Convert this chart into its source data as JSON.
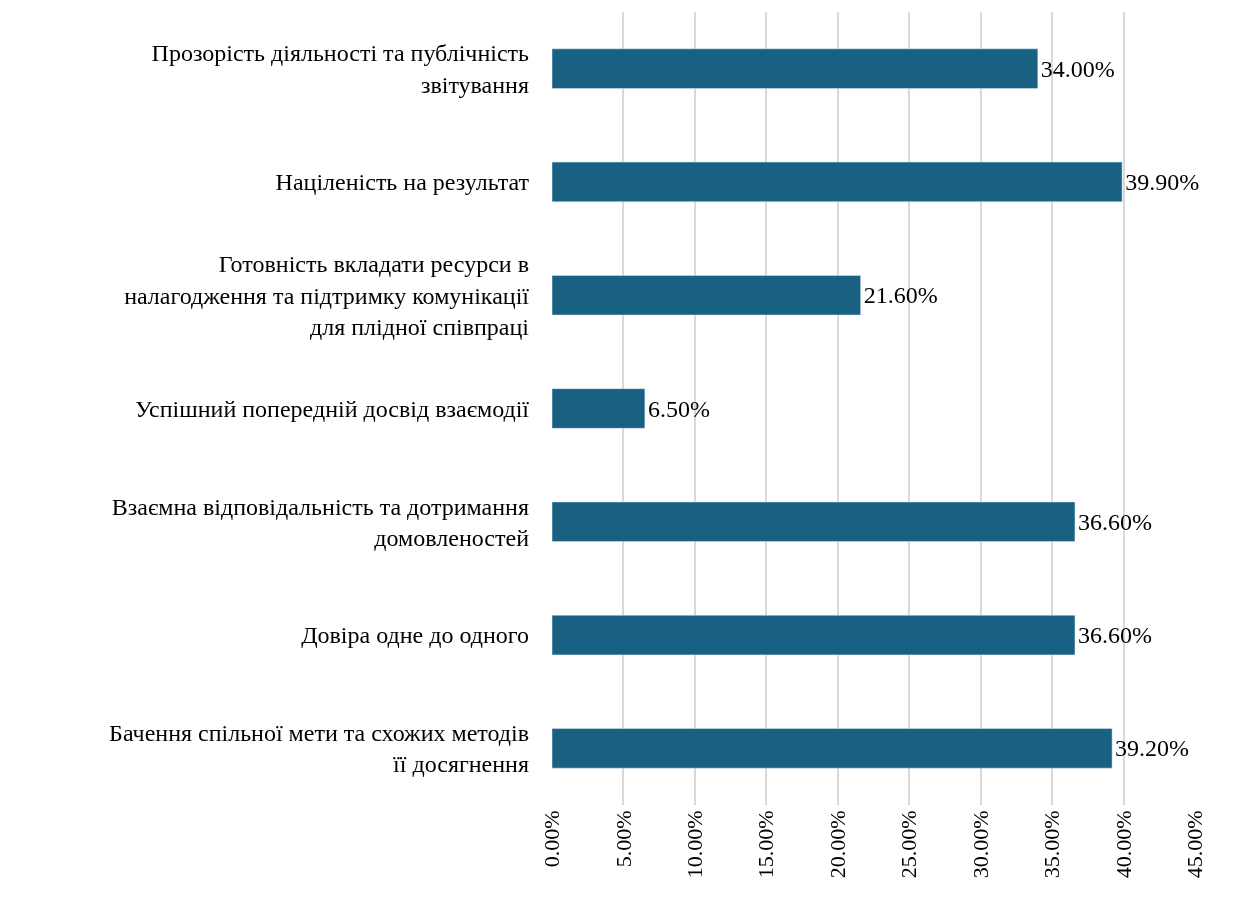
{
  "chart_data": {
    "type": "bar",
    "orientation": "horizontal",
    "categories": [
      "Прозорість діяльності та публічність звітування",
      "Націленість на результат",
      "Готовність вкладати ресурси в налагодження та підтримку комунікації для плідної співпраці",
      "Успішний попередній досвід взаємодії",
      "Взаємна відповідальність та дотримання домовленостей",
      "Довіра одне до одного",
      "Бачення спільної мети та схожих методів її досягнення"
    ],
    "values": [
      34.0,
      39.9,
      21.6,
      6.5,
      36.6,
      36.6,
      39.2
    ],
    "value_labels": [
      "34.00%",
      "39.90%",
      "21.60%",
      "6.50%",
      "36.60%",
      "36.60%",
      "39.20%"
    ],
    "color": "#196183",
    "xlim": [
      0,
      45
    ],
    "xticks": [
      {
        "value": 0,
        "label": "0.00%"
      },
      {
        "value": 5,
        "label": "5.00%"
      },
      {
        "value": 10,
        "label": "10.00%"
      },
      {
        "value": 15,
        "label": "15.00%"
      },
      {
        "value": 20,
        "label": "20.00%"
      },
      {
        "value": 25,
        "label": "25.00%"
      },
      {
        "value": 30,
        "label": "30.00%"
      },
      {
        "value": 35,
        "label": "35.00%"
      },
      {
        "value": 40,
        "label": "40.00%"
      },
      {
        "value": 45,
        "label": "45.00%"
      }
    ],
    "grid": "x",
    "legend": false
  }
}
